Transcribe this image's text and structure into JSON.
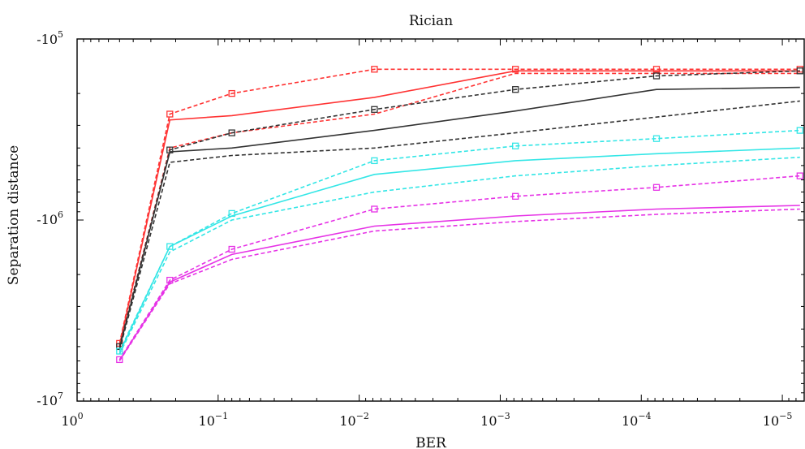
{
  "chart_data": {
    "type": "line",
    "title": "Rician",
    "xlabel": "BER",
    "ylabel": "Separation distance",
    "x_scale": "log",
    "x_reversed": true,
    "xlim": [
      1,
      7e-06
    ],
    "y_scale": "log",
    "ylim": [
      -10000000,
      -100000
    ],
    "x_ticks": [
      {
        "value": 1,
        "label": "10",
        "exp": "0"
      },
      {
        "value": 0.1,
        "label": "10",
        "exp": "−1"
      },
      {
        "value": 0.01,
        "label": "10",
        "exp": "−2"
      },
      {
        "value": 0.001,
        "label": "10",
        "exp": "−3"
      },
      {
        "value": 0.0001,
        "label": "10",
        "exp": "−4"
      },
      {
        "value": 1e-05,
        "label": "10",
        "exp": "−5"
      }
    ],
    "y_ticks": [
      {
        "value": -100000,
        "label": "-10",
        "exp": "5"
      },
      {
        "value": -1000000,
        "label": "-10",
        "exp": "6"
      },
      {
        "value": -10000000,
        "label": "-10",
        "exp": "7"
      }
    ],
    "grid": false,
    "series": [
      {
        "color": "#ff3333",
        "style": "dashed",
        "marker": "square",
        "x": [
          0.5,
          0.22,
          0.08,
          0.0078,
          0.00078,
          7.8e-05,
          7.5e-06
        ],
        "y": [
          -4800000,
          -260000,
          -200000,
          -147000,
          -147000,
          -147000,
          -147000
        ]
      },
      {
        "color": "#ff3333",
        "style": "solid",
        "marker": "none",
        "x": [
          0.5,
          0.22,
          0.08,
          0.0078,
          0.00078,
          7.8e-05,
          7.5e-06
        ],
        "y": [
          -4900000,
          -280000,
          -265000,
          -210000,
          -150000,
          -150000,
          -150000
        ]
      },
      {
        "color": "#ff3333",
        "style": "dashed",
        "marker": "none",
        "x": [
          0.5,
          0.22,
          0.08,
          0.0078,
          0.00078,
          7.8e-05,
          7.5e-06
        ],
        "y": [
          -5000000,
          -400000,
          -330000,
          -260000,
          -155000,
          -155000,
          -155000
        ]
      },
      {
        "color": "#333333",
        "style": "dashed",
        "marker": "square",
        "x": [
          0.5,
          0.22,
          0.08,
          0.0078,
          0.00078,
          7.8e-05,
          7.5e-06
        ],
        "y": [
          -5000000,
          -410000,
          -330000,
          -245000,
          -190000,
          -160000,
          -150000
        ]
      },
      {
        "color": "#333333",
        "style": "solid",
        "marker": "none",
        "x": [
          0.5,
          0.22,
          0.08,
          0.0078,
          0.00078,
          7.8e-05,
          7.5e-06
        ],
        "y": [
          -5100000,
          -420000,
          -400000,
          -320000,
          -250000,
          -190000,
          -185000
        ]
      },
      {
        "color": "#333333",
        "style": "dashed",
        "marker": "none",
        "x": [
          0.5,
          0.22,
          0.08,
          0.0078,
          0.00078,
          7.8e-05,
          7.5e-06
        ],
        "y": [
          -5200000,
          -480000,
          -440000,
          -400000,
          -330000,
          -270000,
          -220000
        ]
      },
      {
        "color": "#33e6e6",
        "style": "dashed",
        "marker": "square",
        "x": [
          0.5,
          0.22,
          0.08,
          0.0078,
          0.00078,
          7.8e-05,
          7.5e-06
        ],
        "y": [
          -5300000,
          -1400000,
          -920000,
          -470000,
          -390000,
          -355000,
          -320000
        ]
      },
      {
        "color": "#33e6e6",
        "style": "solid",
        "marker": "none",
        "x": [
          0.5,
          0.22,
          0.08,
          0.0078,
          0.00078,
          7.8e-05,
          7.5e-06
        ],
        "y": [
          -5400000,
          -1400000,
          -950000,
          -560000,
          -470000,
          -430000,
          -400000
        ]
      },
      {
        "color": "#33e6e6",
        "style": "dashed",
        "marker": "none",
        "x": [
          0.5,
          0.22,
          0.08,
          0.0078,
          0.00078,
          7.8e-05,
          7.5e-06
        ],
        "y": [
          -5500000,
          -1500000,
          -1000000,
          -700000,
          -570000,
          -500000,
          -450000
        ]
      },
      {
        "color": "#e633e6",
        "style": "dashed",
        "marker": "square",
        "x": [
          0.5,
          0.22,
          0.08,
          0.0078,
          0.00078,
          7.8e-05,
          7.5e-06
        ],
        "y": [
          -5900000,
          -2150000,
          -1450000,
          -870000,
          -740000,
          -660000,
          -570000
        ]
      },
      {
        "color": "#e633e6",
        "style": "solid",
        "marker": "none",
        "x": [
          0.5,
          0.22,
          0.08,
          0.0078,
          0.00078,
          7.8e-05,
          7.5e-06
        ],
        "y": [
          -5950000,
          -2200000,
          -1550000,
          -1080000,
          -950000,
          -870000,
          -830000
        ]
      },
      {
        "color": "#e633e6",
        "style": "dashed",
        "marker": "none",
        "x": [
          0.5,
          0.22,
          0.08,
          0.0078,
          0.00078,
          7.8e-05,
          7.5e-06
        ],
        "y": [
          -6000000,
          -2250000,
          -1650000,
          -1150000,
          -1020000,
          -930000,
          -870000
        ]
      }
    ]
  }
}
